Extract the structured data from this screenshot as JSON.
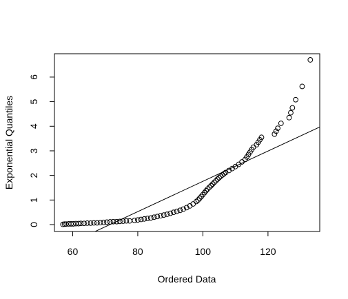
{
  "chart_data": {
    "type": "scatter",
    "title": "",
    "xlabel": "Ordered Data",
    "ylabel": "Exponential Quantiles",
    "xlim": [
      54.4,
      135.9
    ],
    "ylim": [
      -0.28,
      6.95
    ],
    "x_ticks": [
      60,
      80,
      100,
      120
    ],
    "y_ticks": [
      0,
      1,
      2,
      3,
      4,
      5,
      6
    ],
    "x_tick_labels": [
      "60",
      "80",
      "100",
      "120"
    ],
    "y_tick_labels": [
      "0",
      "1",
      "2",
      "3",
      "4",
      "5",
      "6"
    ],
    "grid": false,
    "legend": "none",
    "marker": "open-circle",
    "point_color": "#000000",
    "reference_line": {
      "slope": 0.0616,
      "intercept": -4.4,
      "color": "#000000"
    },
    "points": [
      [
        57.0,
        0.01
      ],
      [
        57.5,
        0.02
      ],
      [
        58.0,
        0.02
      ],
      [
        58.8,
        0.03
      ],
      [
        59.5,
        0.03
      ],
      [
        60.2,
        0.03
      ],
      [
        61.0,
        0.04
      ],
      [
        61.8,
        0.04
      ],
      [
        62.5,
        0.05
      ],
      [
        63.5,
        0.05
      ],
      [
        64.5,
        0.06
      ],
      [
        65.5,
        0.06
      ],
      [
        66.5,
        0.07
      ],
      [
        67.5,
        0.07
      ],
      [
        68.5,
        0.08
      ],
      [
        69.5,
        0.09
      ],
      [
        70.5,
        0.1
      ],
      [
        71.5,
        0.11
      ],
      [
        72.5,
        0.12
      ],
      [
        73.5,
        0.12
      ],
      [
        74.5,
        0.13
      ],
      [
        75.5,
        0.14
      ],
      [
        76.5,
        0.15
      ],
      [
        77.5,
        0.15
      ],
      [
        79.0,
        0.17
      ],
      [
        80.0,
        0.19
      ],
      [
        81.0,
        0.21
      ],
      [
        82.0,
        0.23
      ],
      [
        83.0,
        0.25
      ],
      [
        84.0,
        0.27
      ],
      [
        85.0,
        0.3
      ],
      [
        86.0,
        0.33
      ],
      [
        87.0,
        0.36
      ],
      [
        88.0,
        0.39
      ],
      [
        89.0,
        0.42
      ],
      [
        90.0,
        0.46
      ],
      [
        91.0,
        0.5
      ],
      [
        92.0,
        0.54
      ],
      [
        93.0,
        0.58
      ],
      [
        94.0,
        0.63
      ],
      [
        95.0,
        0.69
      ],
      [
        96.0,
        0.76
      ],
      [
        97.0,
        0.84
      ],
      [
        98.0,
        0.94
      ],
      [
        98.5,
        1.0
      ],
      [
        99.0,
        1.07
      ],
      [
        99.5,
        1.14
      ],
      [
        100.0,
        1.22
      ],
      [
        100.5,
        1.3
      ],
      [
        101.0,
        1.38
      ],
      [
        101.5,
        1.45
      ],
      [
        102.0,
        1.52
      ],
      [
        102.5,
        1.58
      ],
      [
        103.0,
        1.65
      ],
      [
        103.5,
        1.72
      ],
      [
        104.0,
        1.78
      ],
      [
        104.5,
        1.85
      ],
      [
        105.0,
        1.91
      ],
      [
        105.5,
        1.97
      ],
      [
        106.0,
        2.02
      ],
      [
        106.5,
        2.07
      ],
      [
        107.0,
        2.12
      ],
      [
        108.0,
        2.2
      ],
      [
        109.0,
        2.28
      ],
      [
        110.0,
        2.36
      ],
      [
        111.0,
        2.45
      ],
      [
        112.0,
        2.55
      ],
      [
        113.0,
        2.65
      ],
      [
        113.5,
        2.75
      ],
      [
        114.0,
        2.85
      ],
      [
        114.5,
        2.95
      ],
      [
        115.0,
        3.05
      ],
      [
        115.5,
        3.15
      ],
      [
        116.5,
        3.25
      ],
      [
        117.0,
        3.35
      ],
      [
        117.5,
        3.45
      ],
      [
        118.0,
        3.55
      ],
      [
        122.0,
        3.68
      ],
      [
        122.5,
        3.8
      ],
      [
        123.0,
        3.92
      ],
      [
        124.0,
        4.12
      ],
      [
        126.5,
        4.35
      ],
      [
        127.0,
        4.55
      ],
      [
        127.5,
        4.75
      ],
      [
        128.5,
        5.08
      ],
      [
        130.5,
        5.62
      ],
      [
        133.0,
        6.7
      ]
    ]
  }
}
